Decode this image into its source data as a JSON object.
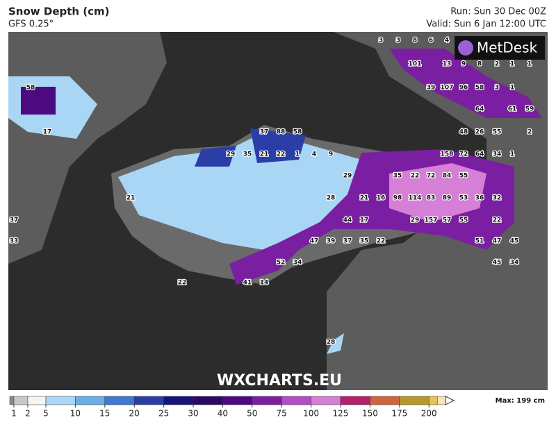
{
  "header": {
    "title": "Snow Depth (cm)",
    "subtitle": "GFS 0.25°",
    "run": "Run: Sun 30 Dec 00Z",
    "valid": "Valid: Sun 6 Jan 12:00 UTC"
  },
  "logo": "MetDesk",
  "watermark": "WXCHARTS.EU",
  "map_labels": [
    3,
    3,
    8,
    6,
    4,
    101,
    13,
    9,
    8,
    2,
    1,
    1,
    39,
    107,
    96,
    58,
    3,
    1,
    64,
    61,
    59,
    48,
    26,
    55,
    2,
    158,
    72,
    64,
    34,
    1,
    37,
    88,
    58,
    29,
    35,
    21,
    22,
    1,
    4,
    9,
    35,
    22,
    72,
    84,
    55,
    98,
    114,
    83,
    89,
    53,
    36,
    32,
    29,
    157,
    57,
    55,
    22,
    51,
    47,
    45,
    47,
    39,
    37,
    35,
    22,
    52,
    34,
    41,
    14,
    45,
    34,
    21,
    22,
    28,
    58,
    37,
    33,
    17,
    29,
    28,
    16,
    21,
    44,
    17
  ],
  "legend": {
    "ticks": [
      1,
      2,
      5,
      10,
      15,
      20,
      25,
      30,
      40,
      50,
      75,
      100,
      125,
      150,
      175,
      200
    ],
    "colors": [
      "#8a8a8a",
      "#c8c8c8",
      "#f4f4f4",
      "#a9d6f5",
      "#6aaee6",
      "#3f78cf",
      "#2b3ea8",
      "#161378",
      "#2c0866",
      "#4b0a80",
      "#7b1fa2",
      "#b24ec6",
      "#d57fd6",
      "#b51f6b",
      "#d0643f",
      "#b59a2a",
      "#e6c25e",
      "#f8e4b4"
    ],
    "max": "Max: 199 cm"
  }
}
